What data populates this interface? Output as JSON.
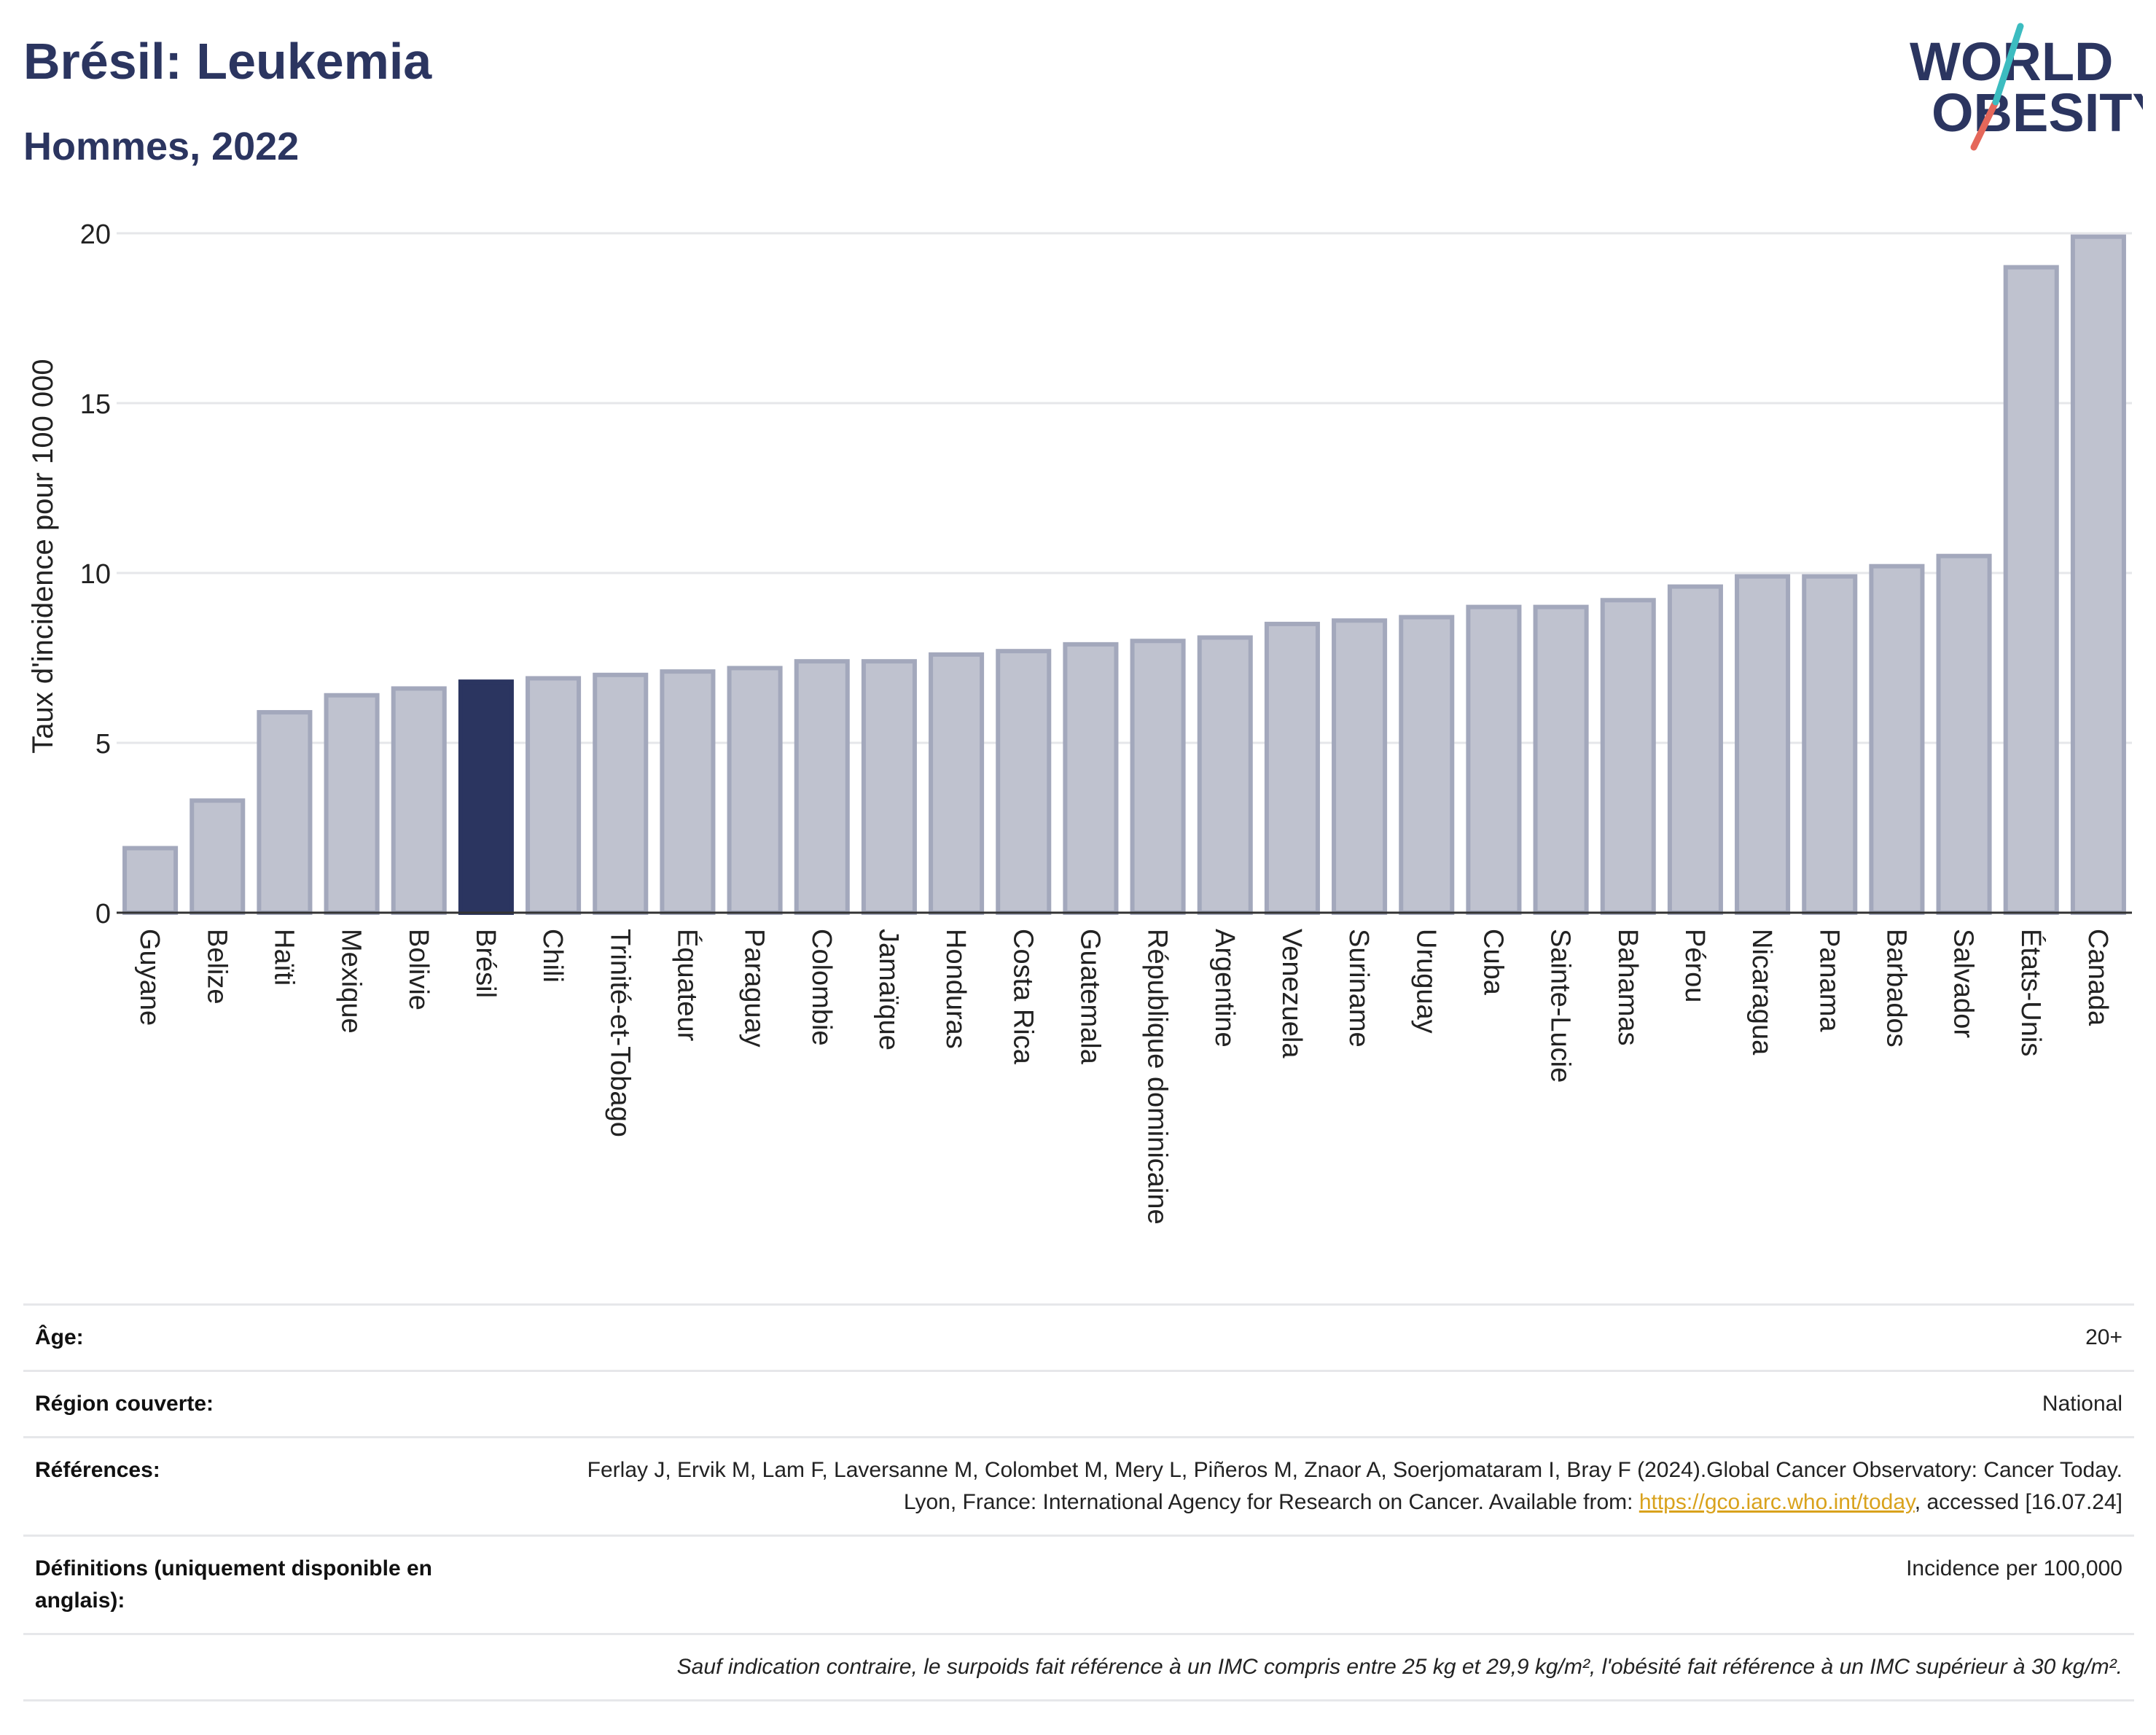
{
  "header": {
    "title": "Brésil: Leukemia",
    "subtitle": "Hommes, 2022"
  },
  "logo": {
    "line1": "WORLD",
    "line2": "OBESITY"
  },
  "colors": {
    "bar": "#bfc2cf",
    "bar_stroke": "#a3a8bc",
    "highlight": "#2b3560",
    "grid": "#e6e7ea"
  },
  "chart_data": {
    "type": "bar",
    "ylabel": "Taux d'incidence pour 100 000",
    "ylim": [
      0,
      20
    ],
    "yticks": [
      0,
      5,
      10,
      15,
      20
    ],
    "highlight": "Brésil",
    "categories": [
      "Guyane",
      "Belize",
      "Haïti",
      "Mexique",
      "Bolivie",
      "Brésil",
      "Chili",
      "Trinité-et-Tobago",
      "Équateur",
      "Paraguay",
      "Colombie",
      "Jamaïque",
      "Honduras",
      "Costa Rica",
      "Guatemala",
      "République dominicaine",
      "Argentine",
      "Venezuela",
      "Suriname",
      "Uruguay",
      "Cuba",
      "Sainte-Lucie",
      "Bahamas",
      "Pérou",
      "Nicaragua",
      "Panama",
      "Barbados",
      "Salvador",
      "États-Unis",
      "Canada"
    ],
    "values": [
      1.9,
      3.3,
      5.9,
      6.4,
      6.6,
      6.8,
      6.9,
      7.0,
      7.1,
      7.2,
      7.4,
      7.4,
      7.6,
      7.7,
      7.9,
      8.0,
      8.1,
      8.5,
      8.6,
      8.7,
      9.0,
      9.0,
      9.2,
      9.6,
      9.9,
      9.9,
      10.2,
      10.5,
      19.0,
      19.9
    ]
  },
  "meta": {
    "age_label": "Âge:",
    "age_value": "20+",
    "region_label": "Région couverte:",
    "region_value": "National",
    "refs_label": "Références:",
    "refs_text": "Ferlay J, Ervik M, Lam F, Laversanne M, Colombet M, Mery L, Piñeros M, Znaor A, Soerjomataram I, Bray F (2024).Global Cancer Observatory: Cancer Today. Lyon, France: International Agency for Research on Cancer. Available from: ",
    "refs_link": "https://gco.iarc.who.int/today",
    "refs_tail": ", accessed [16.07.24]",
    "defs_label": "Définitions (uniquement disponible en anglais):",
    "defs_value": "Incidence per 100,000",
    "footnote": "Sauf indication contraire, le surpoids fait référence à un IMC compris entre 25 kg et 29,9 kg/m², l'obésité fait référence à un IMC supérieur à 30 kg/m²."
  }
}
